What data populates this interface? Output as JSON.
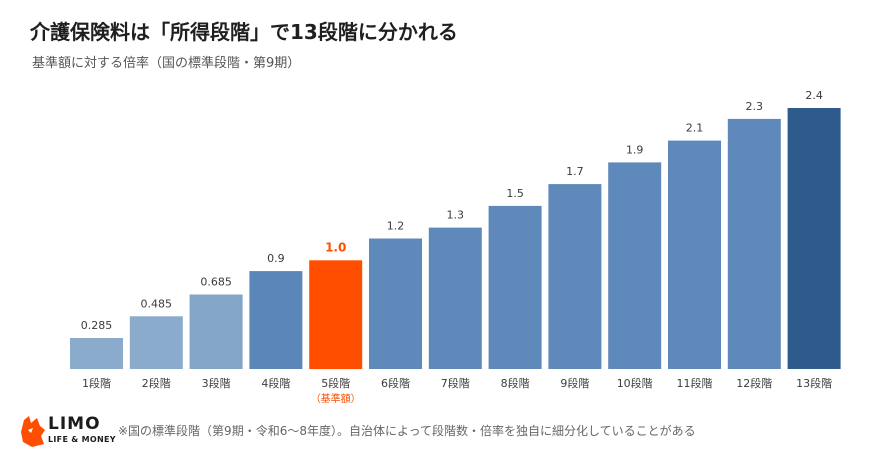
{
  "header": {
    "title": "介護保険料は「所得段階」で13段階に分かれる",
    "subtitle": "基準額に対する倍率（国の標準段階・第9期）"
  },
  "chart_data": {
    "type": "bar",
    "title": "介護保険料は「所得段階」で13段階に分かれる",
    "subtitle": "基準額に対する倍率（国の標準段階・第9期）",
    "categories": [
      "1段階",
      "2段階",
      "3段階",
      "4段階",
      "5段階",
      "6段階",
      "7段階",
      "8段階",
      "9段階",
      "10段階",
      "11段階",
      "12段階",
      "13段階"
    ],
    "values": [
      0.285,
      0.485,
      0.685,
      0.9,
      1.0,
      1.2,
      1.3,
      1.5,
      1.7,
      1.9,
      2.1,
      2.3,
      2.4
    ],
    "value_labels": [
      "0.285",
      "0.485",
      "0.685",
      "0.9",
      "1.0",
      "1.2",
      "1.3",
      "1.5",
      "1.7",
      "1.9",
      "2.1",
      "2.3",
      "2.4"
    ],
    "highlight_index": 4,
    "highlight_sublabel": "（基準額）",
    "ylim": [
      0,
      2.4
    ],
    "grid": false,
    "colors": [
      "#8aabcb",
      "#8aabcb",
      "#82a5c8",
      "#5a86b8",
      "#ff4e00",
      "#5f89ba",
      "#5f89ba",
      "#5f89ba",
      "#5f89ba",
      "#5f89ba",
      "#5f89ba",
      "#5f89ba",
      "#2e5a8c"
    ],
    "label_color": "#3b3b3b",
    "highlight_color": "#ff4e00"
  },
  "footer": {
    "logo_main": "LIMO",
    "logo_sub": "LIFE & MONEY",
    "note": "※国の標準段階（第9期・令和6〜8年度）。自治体によって段階数・倍率を独自に細分化していることがある"
  }
}
